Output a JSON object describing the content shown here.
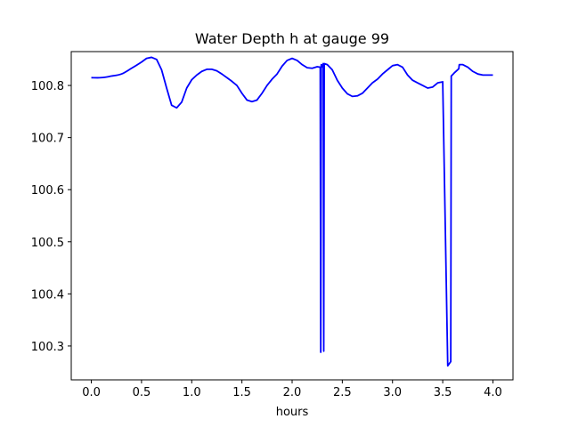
{
  "chart_data": {
    "type": "line",
    "title": "Water Depth h at gauge 99",
    "xlabel": "hours",
    "ylabel": "",
    "xlim": [
      -0.2,
      4.2
    ],
    "ylim": [
      100.235,
      100.865
    ],
    "xticks": [
      0.0,
      0.5,
      1.0,
      1.5,
      2.0,
      2.5,
      3.0,
      3.5,
      4.0
    ],
    "xtick_labels": [
      "0.0",
      "0.5",
      "1.0",
      "1.5",
      "2.0",
      "2.5",
      "3.0",
      "3.5",
      "4.0"
    ],
    "yticks": [
      100.3,
      100.4,
      100.5,
      100.6,
      100.7,
      100.8
    ],
    "ytick_labels": [
      "100.3",
      "100.4",
      "100.5",
      "100.6",
      "100.7",
      "100.8"
    ],
    "grid": false,
    "legend": "none",
    "series": [
      {
        "color": "#0000ff",
        "x": [
          0.0,
          0.1,
          0.2,
          0.3,
          0.4,
          0.5,
          0.55,
          0.6,
          0.65,
          0.7,
          0.75,
          0.8,
          0.85,
          0.9,
          0.95,
          1.0,
          1.05,
          1.1,
          1.15,
          1.2,
          1.25,
          1.3,
          1.35,
          1.4,
          1.45,
          1.5,
          1.55,
          1.6,
          1.65,
          1.7,
          1.75,
          1.8,
          1.85,
          1.9,
          1.95,
          2.0,
          2.05,
          2.1,
          2.15,
          2.2,
          2.25,
          2.28,
          2.285,
          2.29,
          2.295,
          2.31,
          2.315,
          2.32,
          2.35,
          2.4,
          2.45,
          2.5,
          2.55,
          2.6,
          2.65,
          2.7,
          2.75,
          2.8,
          2.85,
          2.9,
          2.95,
          3.0,
          3.05,
          3.1,
          3.15,
          3.2,
          3.25,
          3.3,
          3.35,
          3.4,
          3.45,
          3.5,
          3.55,
          3.58,
          3.585,
          3.62,
          3.66,
          3.665,
          3.7,
          3.75,
          3.8,
          3.85,
          3.9,
          3.95,
          4.0
        ],
        "y": [
          100.815,
          100.815,
          100.818,
          100.822,
          100.833,
          100.845,
          100.852,
          100.854,
          100.85,
          100.83,
          100.795,
          100.762,
          100.757,
          100.768,
          100.795,
          100.811,
          100.82,
          100.827,
          100.831,
          100.831,
          100.828,
          100.822,
          100.815,
          100.808,
          100.8,
          100.785,
          100.772,
          100.769,
          100.772,
          100.785,
          100.8,
          100.812,
          100.822,
          100.837,
          100.848,
          100.852,
          100.848,
          100.84,
          100.834,
          100.833,
          100.836,
          100.835,
          100.288,
          100.84,
          100.835,
          100.842,
          100.29,
          100.842,
          100.84,
          100.83,
          100.81,
          100.795,
          100.784,
          100.779,
          100.78,
          100.785,
          100.795,
          100.805,
          100.812,
          100.822,
          100.83,
          100.838,
          100.84,
          100.835,
          100.82,
          100.81,
          100.805,
          100.8,
          100.795,
          100.797,
          100.805,
          100.807,
          100.262,
          100.27,
          100.818,
          100.825,
          100.832,
          100.84,
          100.84,
          100.835,
          100.827,
          100.822,
          100.82,
          100.82,
          100.82
        ]
      }
    ]
  }
}
